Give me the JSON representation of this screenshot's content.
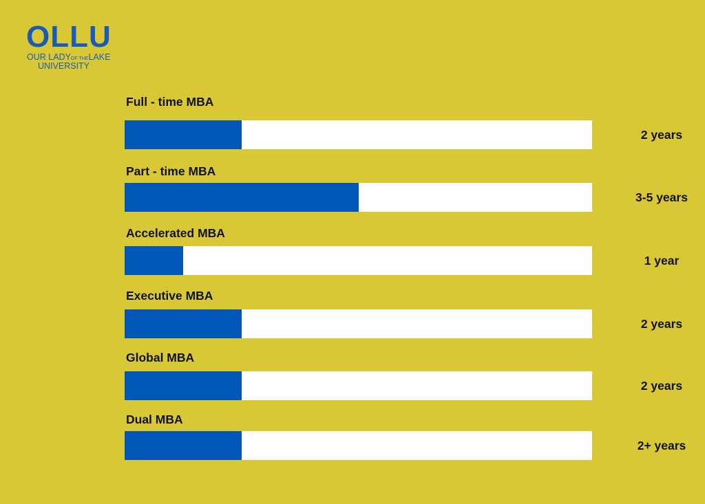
{
  "logo": {
    "mark": "OLLU",
    "line1a": "OUR LADY",
    "line1b": "OF THE",
    "line1c": "LAKE",
    "line2": "UNIVERSITY"
  },
  "colors": {
    "background": "#d8c836",
    "bar": "#0057b8",
    "track": "#ffffff",
    "logo": "#1a5cb5"
  },
  "chart_data": {
    "type": "bar",
    "orientation": "horizontal",
    "categories": [
      "Full - time MBA",
      "Part - time MBA",
      "Accelerated MBA",
      "Executive MBA",
      "Global MBA",
      "Dual MBA"
    ],
    "values": [
      2,
      4,
      1,
      2,
      2,
      2
    ],
    "value_labels": [
      "2 years",
      "3-5 years",
      "1 year",
      "2 years",
      "2 years",
      "2+ years"
    ],
    "unit": "years",
    "xlim": [
      0,
      8
    ],
    "grid": false
  }
}
